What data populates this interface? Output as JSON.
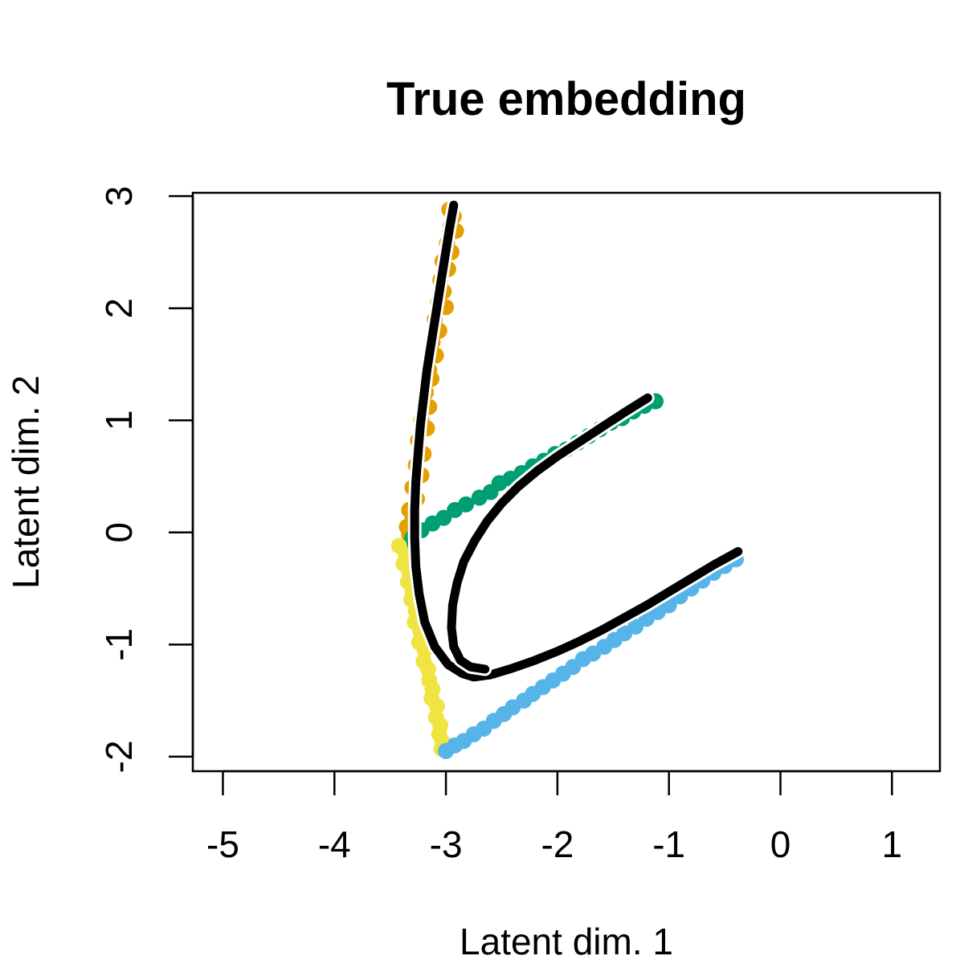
{
  "chart_data": {
    "type": "scatter",
    "title": "True embedding",
    "xlabel": "Latent dim. 1",
    "ylabel": "Latent dim. 2",
    "xlim": [
      -5.27,
      1.43
    ],
    "ylim": [
      -2.13,
      3.03
    ],
    "x_ticks": [
      -5,
      -4,
      -3,
      -2,
      -1,
      0,
      1
    ],
    "y_ticks": [
      -2,
      -1,
      0,
      1,
      2,
      3
    ],
    "grid": false,
    "legend": "none",
    "series": [
      {
        "color": "#E69F00",
        "marker": "point",
        "points": [
          [
            -2.97,
            2.88
          ],
          [
            -2.93,
            2.82
          ],
          [
            -2.96,
            2.73
          ],
          [
            -2.91,
            2.69
          ],
          [
            -2.99,
            2.58
          ],
          [
            -2.95,
            2.5
          ],
          [
            -3.03,
            2.42
          ],
          [
            -2.98,
            2.35
          ],
          [
            -3.05,
            2.25
          ],
          [
            -3.02,
            2.15
          ],
          [
            -3.07,
            2.05
          ],
          [
            -3.0,
            2.01
          ],
          [
            -3.1,
            1.9
          ],
          [
            -3.06,
            1.8
          ],
          [
            -3.12,
            1.7
          ],
          [
            -3.09,
            1.58
          ],
          [
            -3.15,
            1.45
          ],
          [
            -3.13,
            1.37
          ],
          [
            -3.18,
            1.25
          ],
          [
            -3.15,
            1.12
          ],
          [
            -3.22,
            1.0
          ],
          [
            -3.17,
            0.93
          ],
          [
            -3.25,
            0.82
          ],
          [
            -3.2,
            0.7
          ],
          [
            -3.27,
            0.6
          ],
          [
            -3.22,
            0.51
          ],
          [
            -3.3,
            0.4
          ],
          [
            -3.26,
            0.3
          ],
          [
            -3.33,
            0.2
          ],
          [
            -3.3,
            0.12
          ],
          [
            -3.35,
            0.05
          ],
          [
            -3.33,
            -0.02
          ]
        ]
      },
      {
        "color": "#009E73",
        "marker": "point",
        "points": [
          [
            -3.35,
            -0.12
          ],
          [
            -3.3,
            -0.05
          ],
          [
            -3.22,
            0.02
          ],
          [
            -3.12,
            0.08
          ],
          [
            -3.02,
            0.13
          ],
          [
            -2.92,
            0.2
          ],
          [
            -2.82,
            0.25
          ],
          [
            -2.7,
            0.31
          ],
          [
            -2.6,
            0.36
          ],
          [
            -2.52,
            0.44
          ],
          [
            -2.42,
            0.48
          ],
          [
            -2.32,
            0.53
          ],
          [
            -2.22,
            0.59
          ],
          [
            -2.12,
            0.64
          ],
          [
            -2.02,
            0.7
          ],
          [
            -1.92,
            0.74
          ],
          [
            -1.82,
            0.8
          ],
          [
            -1.72,
            0.86
          ],
          [
            -1.62,
            0.92
          ],
          [
            -1.52,
            0.98
          ],
          [
            -1.42,
            1.02
          ],
          [
            -1.32,
            1.08
          ],
          [
            -1.22,
            1.13
          ],
          [
            -1.12,
            1.17
          ]
        ]
      },
      {
        "color": "#F0E442",
        "marker": "point",
        "points": [
          [
            -3.42,
            -0.12
          ],
          [
            -3.36,
            -0.2
          ],
          [
            -3.38,
            -0.28
          ],
          [
            -3.33,
            -0.35
          ],
          [
            -3.34,
            -0.44
          ],
          [
            -3.3,
            -0.52
          ],
          [
            -3.31,
            -0.6
          ],
          [
            -3.27,
            -0.7
          ],
          [
            -3.28,
            -0.8
          ],
          [
            -3.23,
            -0.88
          ],
          [
            -3.24,
            -0.98
          ],
          [
            -3.19,
            -1.05
          ],
          [
            -3.2,
            -1.15
          ],
          [
            -3.16,
            -1.22
          ],
          [
            -3.15,
            -1.32
          ],
          [
            -3.12,
            -1.4
          ],
          [
            -3.13,
            -1.48
          ],
          [
            -3.08,
            -1.55
          ],
          [
            -3.09,
            -1.65
          ],
          [
            -3.05,
            -1.72
          ],
          [
            -3.06,
            -1.8
          ],
          [
            -3.03,
            -1.87
          ],
          [
            -3.04,
            -1.93
          ]
        ]
      },
      {
        "color": "#56B4E9",
        "marker": "point",
        "points": [
          [
            -3.0,
            -1.95
          ],
          [
            -2.92,
            -1.9
          ],
          [
            -2.84,
            -1.86
          ],
          [
            -2.75,
            -1.8
          ],
          [
            -2.66,
            -1.75
          ],
          [
            -2.57,
            -1.68
          ],
          [
            -2.48,
            -1.62
          ],
          [
            -2.4,
            -1.56
          ],
          [
            -2.3,
            -1.5
          ],
          [
            -2.22,
            -1.44
          ],
          [
            -2.13,
            -1.38
          ],
          [
            -2.04,
            -1.32
          ],
          [
            -1.95,
            -1.26
          ],
          [
            -1.86,
            -1.2
          ],
          [
            -1.77,
            -1.13
          ],
          [
            -1.68,
            -1.08
          ],
          [
            -1.58,
            -1.02
          ],
          [
            -1.49,
            -0.96
          ],
          [
            -1.4,
            -0.9
          ],
          [
            -1.3,
            -0.84
          ],
          [
            -1.2,
            -0.77
          ],
          [
            -1.1,
            -0.71
          ],
          [
            -1.0,
            -0.65
          ],
          [
            -0.9,
            -0.57
          ],
          [
            -0.8,
            -0.5
          ],
          [
            -0.7,
            -0.43
          ],
          [
            -0.6,
            -0.36
          ],
          [
            -0.5,
            -0.3
          ],
          [
            -0.4,
            -0.24
          ]
        ]
      },
      {
        "color": "#000000",
        "marker": "line",
        "points": [
          [
            -2.93,
            2.92
          ],
          [
            -2.97,
            2.7
          ],
          [
            -3.01,
            2.45
          ],
          [
            -3.05,
            2.2
          ],
          [
            -3.09,
            1.95
          ],
          [
            -3.13,
            1.7
          ],
          [
            -3.17,
            1.45
          ],
          [
            -3.2,
            1.2
          ],
          [
            -3.23,
            0.95
          ],
          [
            -3.25,
            0.7
          ],
          [
            -3.27,
            0.45
          ],
          [
            -3.28,
            0.2
          ],
          [
            -3.28,
            -0.05
          ],
          [
            -3.27,
            -0.3
          ],
          [
            -3.24,
            -0.55
          ],
          [
            -3.19,
            -0.8
          ],
          [
            -3.1,
            -1.02
          ],
          [
            -2.98,
            -1.18
          ],
          [
            -2.85,
            -1.26
          ],
          [
            -2.75,
            -1.29
          ],
          [
            -2.6,
            -1.27
          ],
          [
            -2.4,
            -1.21
          ],
          [
            -2.2,
            -1.14
          ],
          [
            -2.0,
            -1.06
          ],
          [
            -1.8,
            -0.97
          ],
          [
            -1.6,
            -0.87
          ],
          [
            -1.4,
            -0.76
          ],
          [
            -1.2,
            -0.65
          ],
          [
            -1.0,
            -0.53
          ],
          [
            -0.8,
            -0.41
          ],
          [
            -0.6,
            -0.29
          ],
          [
            -0.38,
            -0.17
          ]
        ]
      },
      {
        "color": "#000000",
        "marker": "line",
        "points": [
          [
            -1.19,
            1.2
          ],
          [
            -1.4,
            1.07
          ],
          [
            -1.6,
            0.94
          ],
          [
            -1.8,
            0.81
          ],
          [
            -2.0,
            0.68
          ],
          [
            -2.18,
            0.55
          ],
          [
            -2.35,
            0.41
          ],
          [
            -2.5,
            0.26
          ],
          [
            -2.63,
            0.1
          ],
          [
            -2.74,
            -0.07
          ],
          [
            -2.84,
            -0.26
          ],
          [
            -2.9,
            -0.45
          ],
          [
            -2.94,
            -0.65
          ],
          [
            -2.95,
            -0.85
          ],
          [
            -2.93,
            -1.02
          ],
          [
            -2.87,
            -1.14
          ],
          [
            -2.78,
            -1.2
          ],
          [
            -2.65,
            -1.22
          ]
        ]
      }
    ]
  }
}
